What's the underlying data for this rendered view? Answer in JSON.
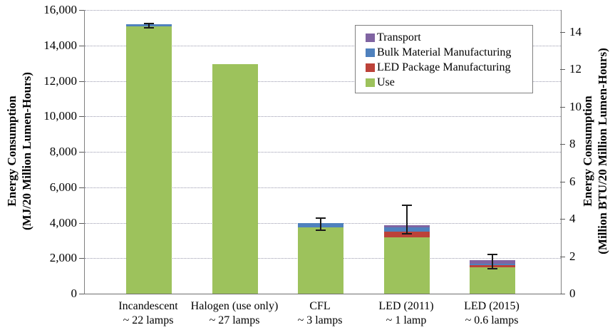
{
  "chart_data": {
    "type": "bar",
    "stacked": true,
    "orientation": "vertical",
    "grid": "horizontal-dotted",
    "categories": [
      {
        "line1": "Incandescent",
        "line2": "~ 22 lamps"
      },
      {
        "line1": "Halogen (use only)",
        "line2": "~ 27 lamps"
      },
      {
        "line1": "CFL",
        "line2": "~ 3 lamps"
      },
      {
        "line1": "LED (2011)",
        "line2": "~ 1 lamp"
      },
      {
        "line1": "LED (2015)",
        "line2": "~ 0.6 lamps"
      }
    ],
    "series": [
      {
        "name": "Use",
        "color": "#9DC25C",
        "values": [
          15080,
          12950,
          3750,
          3180,
          1490
        ]
      },
      {
        "name": "LED Package Manufacturing",
        "color": "#BC4239",
        "values": [
          0,
          0,
          0,
          320,
          100
        ]
      },
      {
        "name": "Bulk Material Manufacturing",
        "color": "#4F81BD",
        "values": [
          120,
          0,
          250,
          240,
          100
        ]
      },
      {
        "name": "Transport",
        "color": "#8064A2",
        "values": [
          0,
          0,
          0,
          140,
          200
        ]
      }
    ],
    "totals": [
      15200,
      12950,
      4000,
      3880,
      1890
    ],
    "error_bars": [
      {
        "low": 15000,
        "high": 15250
      },
      null,
      {
        "low": 3580,
        "high": 4260
      },
      {
        "low": 3380,
        "high": 4990
      },
      {
        "low": 1420,
        "high": 2220
      }
    ],
    "left_axis": {
      "title_line1": "Energy Consumption",
      "title_line2": "(MJ/20 Million Lumen-Hours)",
      "min": 0,
      "max": 16000,
      "step": 2000,
      "tick_labels": [
        "0",
        "2,000",
        "4,000",
        "6,000",
        "8,000",
        "10,000",
        "12,000",
        "14,000",
        "16,000"
      ]
    },
    "right_axis": {
      "title_line1": "Energy Consumption",
      "title_line2": "(Million BTU/20 Million Lumen-Hours)",
      "tick_values": [
        0,
        2,
        4,
        6,
        8,
        10,
        12,
        14
      ],
      "mj_per_unit": 1055.06
    },
    "legend": {
      "position": "top-right-inside",
      "entries": [
        "Transport",
        "Bulk Material Manufacturing",
        "LED Package Manufacturing",
        "Use"
      ]
    }
  }
}
